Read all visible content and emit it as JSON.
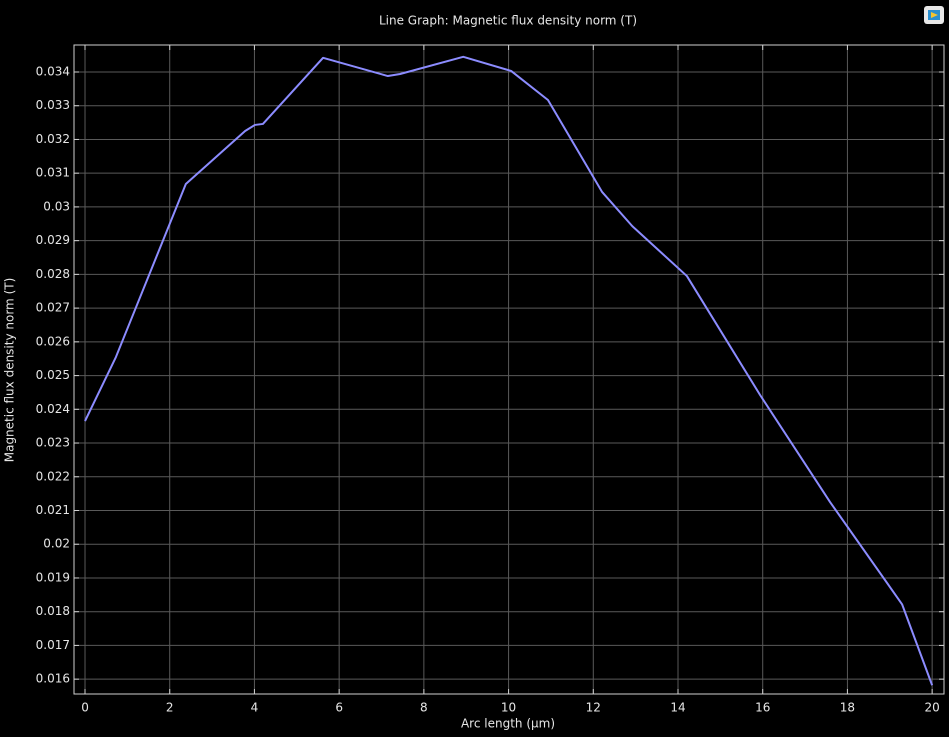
{
  "chart_data": {
    "type": "line",
    "title": "Line Graph: Magnetic flux density norm (T)",
    "x_label": "Arc length (µm)",
    "y_label": "Magnetic flux density norm (T)",
    "x": [
      0,
      0.73,
      2.38,
      3.78,
      4.01,
      4.2,
      5.62,
      7.15,
      7.44,
      8.93,
      10.06,
      10.93,
      12.21,
      12.92,
      14.21,
      15.94,
      17.59,
      19.29,
      20
    ],
    "values": [
      0.02365,
      0.02555,
      0.03068,
      0.03225,
      0.03243,
      0.03246,
      0.03442,
      0.03388,
      0.03394,
      0.03445,
      0.03403,
      0.03317,
      0.03044,
      0.02943,
      0.02795,
      0.02442,
      0.02125,
      0.01822,
      0.01582
    ],
    "color": "#8c8cff",
    "xlim": [
      -0.26,
      20.28
    ],
    "ylim": [
      0.01556,
      0.0348
    ],
    "xticks": [
      0,
      2,
      4,
      6,
      8,
      10,
      12,
      14,
      16,
      18,
      20
    ],
    "yticks": [
      0.016,
      0.017,
      0.018,
      0.019,
      0.02,
      0.021,
      0.022,
      0.023,
      0.024,
      0.025,
      0.026,
      0.027,
      0.028,
      0.029,
      0.03,
      0.031,
      0.032,
      0.033,
      0.034
    ],
    "grid": true
  }
}
